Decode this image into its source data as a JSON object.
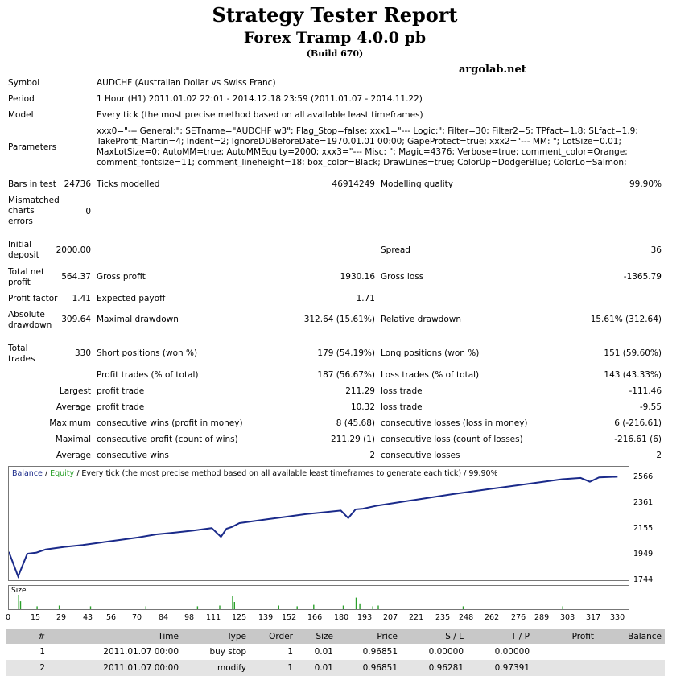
{
  "report": {
    "title": "Strategy Tester Report",
    "expert": "Forex Tramp 4.0.0 pb",
    "build": "(Build 670)",
    "site": "argolab.net"
  },
  "info": {
    "symbol_label": "Symbol",
    "symbol": "AUDCHF (Australian Dollar vs Swiss Franc)",
    "period_label": "Period",
    "period": "1 Hour (H1) 2011.01.02 22:01 - 2014.12.18 23:59 (2011.01.07 - 2014.11.22)",
    "model_label": "Model",
    "model": "Every tick (the most precise method based on all available least timeframes)",
    "parameters_label": "Parameters",
    "parameters": "xxx0=\"--- General:\"; SETname=\"AUDCHF w3\"; Flag_Stop=false; xxx1=\"--- Logic:\"; Filter=30; Filter2=5; TPfact=1.8; SLfact=1.9; TakeProfit_Martin=4; Indent=2; IgnoreDDBeforeDate=1970.01.01 00:00; GapeProtect=true; xxx2=\"--- MM: \"; LotSize=0.01; MaxLotSize=0; AutoMM=true; AutoMMEquity=2000; xxx3=\"--- Misc: \"; Magic=4376; Verbose=true; comment_color=Orange; comment_fontsize=11; comment_lineheight=18; box_color=Black; DrawLines=true; ColorUp=DodgerBlue; ColorLo=Salmon;"
  },
  "stats": {
    "bars_label": "Bars in test",
    "bars": "24736",
    "ticks_label": "Ticks modelled",
    "ticks": "46914249",
    "quality_label": "Modelling quality",
    "quality": "99.90%",
    "mismatch_label": "Mismatched charts errors",
    "mismatch": "0",
    "deposit_label": "Initial deposit",
    "deposit": "2000.00",
    "spread_label": "Spread",
    "spread": "36",
    "net_label": "Total net profit",
    "net": "564.37",
    "gross_profit_label": "Gross profit",
    "gross_profit": "1930.16",
    "gross_loss_label": "Gross loss",
    "gross_loss": "-1365.79",
    "pf_label": "Profit factor",
    "pf": "1.41",
    "payoff_label": "Expected payoff",
    "payoff": "1.71",
    "abs_dd_label": "Absolute drawdown",
    "abs_dd": "309.64",
    "max_dd_label": "Maximal drawdown",
    "max_dd": "312.64 (15.61%)",
    "rel_dd_label": "Relative drawdown",
    "rel_dd": "15.61% (312.64)",
    "trades_label": "Total trades",
    "trades": "330",
    "short_label": "Short positions (won %)",
    "short": "179 (54.19%)",
    "long_label": "Long positions (won %)",
    "long": "151 (59.60%)",
    "ptrades_label": "Profit trades (% of total)",
    "ptrades": "187 (56.67%)",
    "ltrades_label": "Loss trades (% of total)",
    "ltrades": "143 (43.33%)",
    "largest_label": "Largest",
    "profit_trade_label": "profit trade",
    "largest_profit": "211.29",
    "loss_trade_label": "loss trade",
    "largest_loss": "-111.46",
    "average_label": "Average",
    "avg_profit": "10.32",
    "avg_loss": "-9.55",
    "maximum_label": "Maximum",
    "cw_money_label": "consecutive wins (profit in money)",
    "cw_money": "8 (45.68)",
    "cl_money_label": "consecutive losses (loss in money)",
    "cl_money": "6 (-216.61)",
    "maximal_label": "Maximal",
    "cp_count_label": "consecutive profit (count of wins)",
    "cp_count": "211.29 (1)",
    "cl_count_label": "consecutive loss (count of losses)",
    "cl_count": "-216.61 (6)",
    "avg_cw_label": "consecutive wins",
    "avg_cw": "2",
    "avg_cl_label": "consecutive losses",
    "avg_cl": "2"
  },
  "chart": {
    "legend_balance": "Balance",
    "legend_sep": " / ",
    "legend_equity": "Equity",
    "caption_rest": " / Every tick (the most precise method based on all available least timeframes to generate each tick) / 99.90%",
    "size_label": "Size",
    "line_color": "#1a2a8a",
    "size_color": "#2aa02a"
  },
  "chart_data": {
    "type": "line",
    "title": "",
    "series": [
      {
        "name": "Balance",
        "x": [
          0,
          5,
          10,
          15,
          20,
          30,
          40,
          50,
          60,
          70,
          80,
          90,
          100,
          110,
          115,
          118,
          121,
          125,
          140,
          150,
          160,
          170,
          180,
          184,
          188,
          192,
          200,
          220,
          240,
          260,
          280,
          300,
          310,
          315,
          320,
          330
        ],
        "y": [
          1970,
          1775,
          1955,
          1965,
          1990,
          2010,
          2025,
          2045,
          2065,
          2085,
          2110,
          2125,
          2140,
          2160,
          2090,
          2155,
          2170,
          2200,
          2230,
          2250,
          2270,
          2285,
          2300,
          2240,
          2310,
          2315,
          2340,
          2385,
          2430,
          2470,
          2510,
          2550,
          2560,
          2530,
          2565,
          2570
        ]
      }
    ],
    "y_ticks": [
      2566,
      2361,
      2155,
      1949,
      1744
    ],
    "ylim": [
      1744,
      2566
    ],
    "x_ticks": [
      0,
      15,
      29,
      43,
      56,
      70,
      84,
      98,
      111,
      125,
      139,
      152,
      166,
      180,
      193,
      207,
      221,
      235,
      248,
      262,
      276,
      289,
      303,
      317,
      330
    ],
    "xlim": [
      0,
      336
    ],
    "size_bars": [
      {
        "x": 5,
        "v": 1.0
      },
      {
        "x": 6,
        "v": 0.55
      },
      {
        "x": 15,
        "v": 0.2
      },
      {
        "x": 27,
        "v": 0.25
      },
      {
        "x": 44,
        "v": 0.2
      },
      {
        "x": 74,
        "v": 0.2
      },
      {
        "x": 102,
        "v": 0.2
      },
      {
        "x": 114,
        "v": 0.25
      },
      {
        "x": 121,
        "v": 0.9
      },
      {
        "x": 122,
        "v": 0.5
      },
      {
        "x": 146,
        "v": 0.25
      },
      {
        "x": 156,
        "v": 0.2
      },
      {
        "x": 165,
        "v": 0.3
      },
      {
        "x": 181,
        "v": 0.25
      },
      {
        "x": 188,
        "v": 0.8
      },
      {
        "x": 190,
        "v": 0.4
      },
      {
        "x": 197,
        "v": 0.2
      },
      {
        "x": 200,
        "v": 0.25
      },
      {
        "x": 246,
        "v": 0.2
      },
      {
        "x": 300,
        "v": 0.2
      }
    ]
  },
  "table": {
    "headers": [
      "#",
      "Time",
      "Type",
      "Order",
      "Size",
      "Price",
      "S / L",
      "T / P",
      "Profit",
      "Balance"
    ],
    "rows": [
      [
        "1",
        "2011.01.07 00:00",
        "buy stop",
        "1",
        "0.01",
        "0.96851",
        "0.00000",
        "0.00000",
        "",
        ""
      ],
      [
        "2",
        "2011.01.07 00:00",
        "modify",
        "1",
        "0.01",
        "0.96851",
        "0.96281",
        "0.97391",
        "",
        ""
      ]
    ]
  }
}
